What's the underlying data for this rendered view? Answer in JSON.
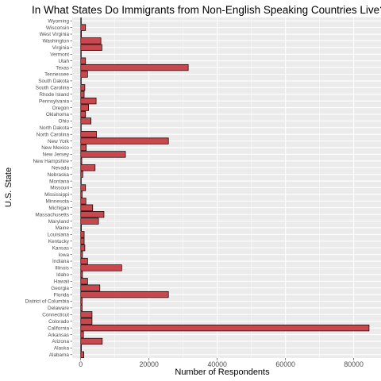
{
  "chart_data": {
    "type": "bar",
    "orientation": "horizontal",
    "title": "In What States Do Immigrants from Non-English Speaking Countries Live?",
    "xlabel": "Number of Respondents",
    "ylabel": "U.S. State",
    "xlim": [
      -2500,
      88000
    ],
    "xticks": [
      0,
      20000,
      40000,
      60000,
      80000
    ],
    "xtick_labels": [
      "0",
      "20000",
      "40000",
      "60000",
      "80000"
    ],
    "grid": true,
    "bar_color": "#c8484d",
    "panel_color": "#ebebeb",
    "categories": [
      "Alabama",
      "Alaska",
      "Arizona",
      "Arkansas",
      "California",
      "Colorado",
      "Connecticut",
      "Delaware",
      "District of Columbia",
      "Florida",
      "Georgia",
      "Hawaii",
      "Idaho",
      "Illinois",
      "Indiana",
      "Iowa",
      "Kansas",
      "Kentucky",
      "Louisiana",
      "Maine",
      "Maryland",
      "Massachusetts",
      "Michigan",
      "Minnesota",
      "Mississippi",
      "Missouri",
      "Montana",
      "Nebraska",
      "Nevada",
      "New Hampshire",
      "New Jersey",
      "New Mexico",
      "New York",
      "North Carolina",
      "North Dakota",
      "Ohio",
      "Oklahoma",
      "Oregon",
      "Pennsylvania",
      "Rhode Island",
      "South Carolina",
      "South Dakota",
      "Tennessee",
      "Texas",
      "Utah",
      "Vermont",
      "Virginia",
      "Washington",
      "West Virginia",
      "Wisconsin",
      "Wyoming"
    ],
    "values": [
      900,
      200,
      6300,
      800,
      84500,
      3300,
      3300,
      400,
      400,
      25700,
      5600,
      2000,
      500,
      12000,
      2000,
      500,
      1200,
      1000,
      1000,
      200,
      5200,
      6800,
      3500,
      1500,
      400,
      1400,
      100,
      600,
      4200,
      300,
      13100,
      1600,
      25700,
      4600,
      100,
      3000,
      1400,
      2300,
      4500,
      1000,
      1200,
      100,
      2000,
      31500,
      1400,
      100,
      6200,
      5900,
      200,
      1400,
      100
    ]
  }
}
